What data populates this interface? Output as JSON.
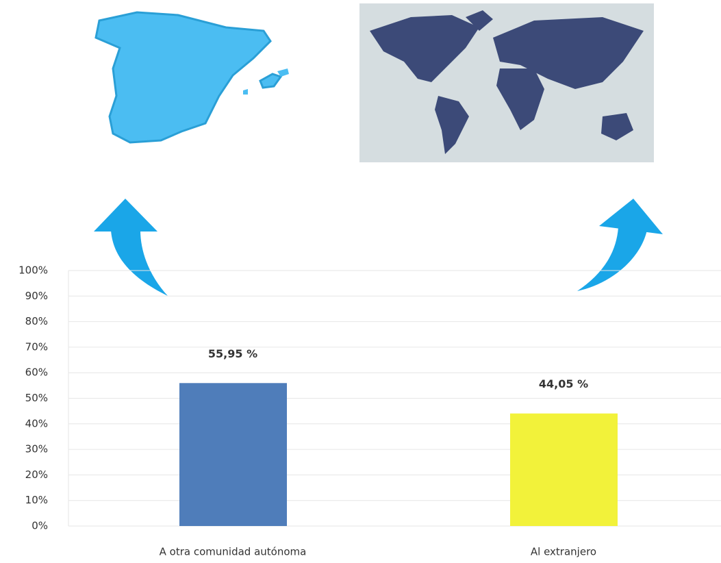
{
  "chart_data": {
    "type": "bar",
    "categories": [
      "A otra comunidad autónoma",
      "Al extranjero"
    ],
    "values": [
      55.95,
      44.05
    ],
    "value_labels": [
      "55,95 %",
      "44,05 %"
    ],
    "colors": [
      "#4f7dba",
      "#f2f23a"
    ],
    "ylim": [
      0,
      100
    ],
    "yticks": [
      {
        "value": 0,
        "label": "0%"
      },
      {
        "value": 10,
        "label": "10%"
      },
      {
        "value": 20,
        "label": "20%"
      },
      {
        "value": 30,
        "label": "30%"
      },
      {
        "value": 40,
        "label": "40%"
      },
      {
        "value": 50,
        "label": "50%"
      },
      {
        "value": 60,
        "label": "60%"
      },
      {
        "value": 70,
        "label": "70%"
      },
      {
        "value": 80,
        "label": "80%"
      },
      {
        "value": 90,
        "label": "90%"
      },
      {
        "value": 100,
        "label": "100%"
      }
    ],
    "grid": true
  }
}
